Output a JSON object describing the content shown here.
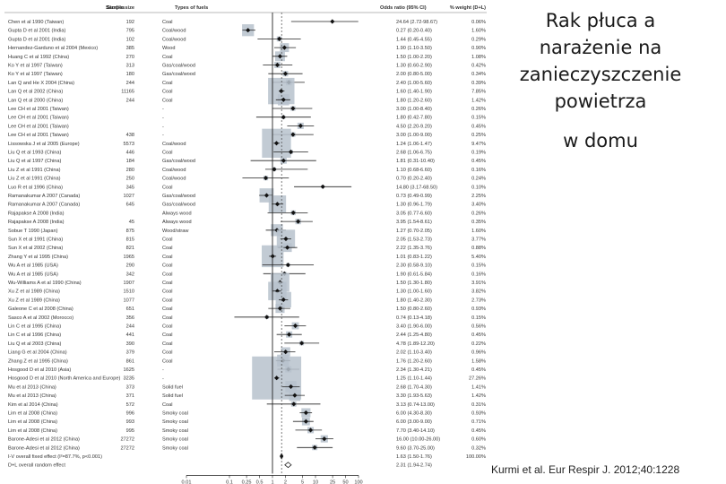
{
  "slide": {
    "title_lines": [
      "Rak płuca a",
      "narażenie na",
      "zanieczyszczenie",
      "powietrza"
    ],
    "subtitle": "w domu",
    "citation": "Kurmi et al. Eur Respir J. 2012;40:1228"
  },
  "chart_data": {
    "type": "forest",
    "title": "",
    "columns": [
      "Studies",
      "Sample size",
      "Types of fuels",
      "Odds ratio (95% CI)",
      "% weight (D+L)"
    ],
    "xscale": "log",
    "xlim": [
      0.01,
      100
    ],
    "xticks": [
      "0.01",
      "0.1",
      "0.25",
      "0.5",
      "1",
      "2",
      "5",
      "10",
      "25",
      "50",
      "100"
    ],
    "xtick_values": [
      0.01,
      0.1,
      0.25,
      0.5,
      1,
      2,
      5,
      10,
      25,
      50,
      100
    ],
    "reference_line": 1,
    "pooled_line": 1.63,
    "studies": [
      {
        "study": "Chen et al 1990 (Taiwan)",
        "n": "192",
        "fuel": "Coal",
        "or": 24.64,
        "lo": 2.72,
        "hi": 98.67,
        "ci_text": "24.64 (2.72-98.67)",
        "weight": "0.06%"
      },
      {
        "study": "Gupta D et al 2001 (India)",
        "n": "795",
        "fuel": "Coal/wood",
        "or": 0.27,
        "lo": 0.2,
        "hi": 0.4,
        "ci_text": "0.27 (0.20-0.40)",
        "weight": "1.60%"
      },
      {
        "study": "Gupta D et al 2001 (India)",
        "n": "102",
        "fuel": "Coal/wood",
        "or": 1.44,
        "lo": 0.45,
        "hi": 4.55,
        "ci_text": "1.44 (0.45-4.55)",
        "weight": "0.29%"
      },
      {
        "study": "Hernandez-Garduno et al 2004 (Mexico)",
        "n": "385",
        "fuel": "Wood",
        "or": 1.9,
        "lo": 1.1,
        "hi": 3.5,
        "ci_text": "1.90 (1.10-3.50)",
        "weight": "0.90%"
      },
      {
        "study": "Huang C et al 1992 (China)",
        "n": "270",
        "fuel": "Coal",
        "or": 1.5,
        "lo": 1.0,
        "hi": 2.2,
        "ci_text": "1.50 (1.00-2.20)",
        "weight": "1.08%"
      },
      {
        "study": "Ko Y et al 1997 (Taiwan)",
        "n": "313",
        "fuel": "Gas/coal/wood",
        "or": 1.3,
        "lo": 0.6,
        "hi": 2.9,
        "ci_text": "1.30 (0.60-2.90)",
        "weight": "0.42%"
      },
      {
        "study": "Ko Y et al 1997 (Taiwan)",
        "n": "180",
        "fuel": "Gas/coal/wood",
        "or": 2.0,
        "lo": 0.8,
        "hi": 5.0,
        "ci_text": "2.00 (0.80-5.00)",
        "weight": "0.34%"
      },
      {
        "study": "Lan Q and He X 2004 (China)",
        "n": "244",
        "fuel": "Coal",
        "or": 2.4,
        "lo": 1.0,
        "hi": 5.6,
        "ci_text": "2.40 (1.00-5.60)",
        "weight": "0.39%"
      },
      {
        "study": "Lan Q et al 2002 (China)",
        "n": "11165",
        "fuel": "Coal",
        "or": 1.6,
        "lo": 1.4,
        "hi": 1.9,
        "ci_text": "1.60 (1.40-1.90)",
        "weight": "7.85%"
      },
      {
        "study": "Lan Q et al 2000 (China)",
        "n": "244",
        "fuel": "Coal",
        "or": 1.8,
        "lo": 1.2,
        "hi": 2.6,
        "ci_text": "1.80 (1.20-2.60)",
        "weight": "1.42%"
      },
      {
        "study": "Lee CH et al 2001 (Taiwan)",
        "n": "",
        "fuel": "-",
        "or": 3.0,
        "lo": 1.0,
        "hi": 8.4,
        "ci_text": "3.00 (1.00-8.40)",
        "weight": "0.26%"
      },
      {
        "study": "Lee CH et al 2001 (Taiwan)",
        "n": "",
        "fuel": "-",
        "or": 1.8,
        "lo": 0.42,
        "hi": 7.8,
        "ci_text": "1.80 (0.42-7.80)",
        "weight": "0.15%"
      },
      {
        "study": "Lee CH et al 2001 (Taiwan)",
        "n": "",
        "fuel": "-",
        "or": 4.5,
        "lo": 2.2,
        "hi": 9.2,
        "ci_text": "4.50 (2.20-9.20)",
        "weight": "0.45%"
      },
      {
        "study": "Lee CH et al 2001 (Taiwan)",
        "n": "438",
        "fuel": "-",
        "or": 3.0,
        "lo": 1.0,
        "hi": 9.0,
        "ci_text": "3.00 (1.00-9.00)",
        "weight": "0.25%"
      },
      {
        "study": "Lissowska J et al 2005 (Europe)",
        "n": "5573",
        "fuel": "Coal/wood",
        "or": 1.24,
        "lo": 1.06,
        "hi": 1.47,
        "ci_text": "1.24 (1.06-1.47)",
        "weight": "9.47%"
      },
      {
        "study": "Liu Q et al 1993 (China)",
        "n": "446",
        "fuel": "Coal",
        "or": 2.68,
        "lo": 1.06,
        "hi": 6.75,
        "ci_text": "2.68 (1.06-6.75)",
        "weight": "0.19%"
      },
      {
        "study": "Liu Q et al 1997 (China)",
        "n": "184",
        "fuel": "Gas/coal/wood",
        "or": 1.81,
        "lo": 0.31,
        "hi": 10.4,
        "ci_text": "1.81 (0.31-10.40)",
        "weight": "0.45%"
      },
      {
        "study": "Liu Z et al 1991 (China)",
        "n": "280",
        "fuel": "Coal/wood",
        "or": 1.1,
        "lo": 0.68,
        "hi": 6.6,
        "ci_text": "1.10 (0.68-6.60)",
        "weight": "0.16%"
      },
      {
        "study": "Liu Z et al 1991 (China)",
        "n": "250",
        "fuel": "Coal/wood",
        "or": 0.7,
        "lo": 0.2,
        "hi": 2.4,
        "ci_text": "0.70 (0.20-2.40)",
        "weight": "0.24%"
      },
      {
        "study": "Luo R et al 1996 (China)",
        "n": "345",
        "fuel": "Coal",
        "or": 14.8,
        "lo": 3.17,
        "hi": 68.5,
        "ci_text": "14.80 (3.17-68.50)",
        "weight": "0.10%"
      },
      {
        "study": "Ramanakumar A 2007 (Canada)",
        "n": "1027",
        "fuel": "Gas/coal/wood",
        "or": 0.73,
        "lo": 0.49,
        "hi": 0.99,
        "ci_text": "0.73 (0.49-0.99)",
        "weight": "2.25%"
      },
      {
        "study": "Ramanakumar A 2007 (Canada)",
        "n": "645",
        "fuel": "Gas/coal/wood",
        "or": 1.3,
        "lo": 0.96,
        "hi": 1.79,
        "ci_text": "1.30 (0.96-1.79)",
        "weight": "3.40%"
      },
      {
        "study": "Rajapakse A 2008 (India)",
        "n": "",
        "fuel": "Always wood",
        "or": 3.05,
        "lo": 0.77,
        "hi": 6.6,
        "ci_text": "3.05 (0.77-6.60)",
        "weight": "0.26%"
      },
      {
        "study": "Rajapakse A 2008 (India)",
        "n": "45",
        "fuel": "Always wood",
        "or": 3.95,
        "lo": 1.54,
        "hi": 8.61,
        "ci_text": "3.95 (1.54-8.61)",
        "weight": "0.35%"
      },
      {
        "study": "Sobue T 1990 (Japan)",
        "n": "875",
        "fuel": "Wood/straw",
        "or": 1.27,
        "lo": 0.7,
        "hi": 2.05,
        "ci_text": "1.27 (0.70-2.05)",
        "weight": "1.60%"
      },
      {
        "study": "Sun X et al 1991 (China)",
        "n": "815",
        "fuel": "Coal",
        "or": 2.05,
        "lo": 1.53,
        "hi": 2.73,
        "ci_text": "2.05 (1.53-2.73)",
        "weight": "3.77%"
      },
      {
        "study": "Sun X et al 2002 (China)",
        "n": "821",
        "fuel": "Coal",
        "or": 2.22,
        "lo": 1.35,
        "hi": 3.76,
        "ci_text": "2.22 (1.35-3.76)",
        "weight": "0.88%"
      },
      {
        "study": "Zhang Y et al 1995 (China)",
        "n": "1965",
        "fuel": "Coal",
        "or": 1.01,
        "lo": 0.83,
        "hi": 1.22,
        "ci_text": "1.01 (0.83-1.22)",
        "weight": "5.40%"
      },
      {
        "study": "Wu A et al 1985 (USA)",
        "n": "290",
        "fuel": "Coal",
        "or": 2.3,
        "lo": 0.58,
        "hi": 9.1,
        "ci_text": "2.30 (0.58-9.10)",
        "weight": "0.15%"
      },
      {
        "study": "Wu A et al 1985 (USA)",
        "n": "342",
        "fuel": "Coal",
        "or": 1.9,
        "lo": 0.61,
        "hi": 5.84,
        "ci_text": "1.90 (0.61-5.84)",
        "weight": "0.16%"
      },
      {
        "study": "Wu-Williams A et al 1990 (China)",
        "n": "1907",
        "fuel": "Coal",
        "or": 1.5,
        "lo": 1.3,
        "hi": 1.8,
        "ci_text": "1.50 (1.30-1.80)",
        "weight": "3.91%"
      },
      {
        "study": "Xu Z et al 1989 (China)",
        "n": "1510",
        "fuel": "Coal",
        "or": 1.3,
        "lo": 1.0,
        "hi": 1.6,
        "ci_text": "1.30 (1.00-1.60)",
        "weight": "3.82%"
      },
      {
        "study": "Xu Z et al 1989 (China)",
        "n": "1077",
        "fuel": "Coal",
        "or": 1.8,
        "lo": 1.4,
        "hi": 2.3,
        "ci_text": "1.80 (1.40-2.30)",
        "weight": "2.73%"
      },
      {
        "study": "Galeone C et al 2008 (China)",
        "n": "651",
        "fuel": "Coal",
        "or": 1.5,
        "lo": 0.8,
        "hi": 2.6,
        "ci_text": "1.50 (0.80-2.60)",
        "weight": "0.93%"
      },
      {
        "study": "Sasco A et al 2002 (Morocco)",
        "n": "356",
        "fuel": "Coal",
        "or": 0.74,
        "lo": 0.13,
        "hi": 4.18,
        "ci_text": "0.74 (0.13-4.18)",
        "weight": "0.15%"
      },
      {
        "study": "Lin C et al 1995 (China)",
        "n": "244",
        "fuel": "Coal",
        "or": 3.4,
        "lo": 1.9,
        "hi": 6.0,
        "ci_text": "3.40 (1.90-6.00)",
        "weight": "0.56%"
      },
      {
        "study": "Lin C et al 1996 (China)",
        "n": "441",
        "fuel": "Coal",
        "or": 2.44,
        "lo": 1.25,
        "hi": 4.8,
        "ci_text": "2.44 (1.25-4.80)",
        "weight": "0.45%"
      },
      {
        "study": "Liu Q et al 2003 (China)",
        "n": "390",
        "fuel": "Coal",
        "or": 4.78,
        "lo": 1.89,
        "hi": 12.2,
        "ci_text": "4.78 (1.89-12.20)",
        "weight": "0.22%"
      },
      {
        "study": "Liang G et al 2004 (China)",
        "n": "379",
        "fuel": "Coal",
        "or": 2.02,
        "lo": 1.1,
        "hi": 3.4,
        "ci_text": "2.02 (1.10-3.40)",
        "weight": "0.96%"
      },
      {
        "study": "Zhang Z et al 1995 (China)",
        "n": "861",
        "fuel": "Coal",
        "or": 1.76,
        "lo": 1.2,
        "hi": 2.6,
        "ci_text": "1.76 (1.20-2.60)",
        "weight": "1.58%"
      },
      {
        "study": "Hosgood D et al 2010 (Asia)",
        "n": "1625",
        "fuel": "-",
        "or": 2.34,
        "lo": 1.3,
        "hi": 4.21,
        "ci_text": "2.34 (1.30-4.21)",
        "weight": "0.45%"
      },
      {
        "study": "Hosgood D et al 2010 (North America and Europe)",
        "n": "3235",
        "fuel": "-",
        "or": 1.25,
        "lo": 1.1,
        "hi": 1.44,
        "ci_text": "1.25 (1.10-1.44)",
        "weight": "27.26%"
      },
      {
        "study": "Mu et al 2013 (China)",
        "n": "373",
        "fuel": "Solid fuel",
        "or": 2.68,
        "lo": 1.7,
        "hi": 4.3,
        "ci_text": "2.68 (1.70-4.30)",
        "weight": "1.41%"
      },
      {
        "study": "Mu et al 2013 (China)",
        "n": "371",
        "fuel": "Solid fuel",
        "or": 3.3,
        "lo": 1.93,
        "hi": 5.63,
        "ci_text": "3.30 (1.93-5.63)",
        "weight": "1.42%"
      },
      {
        "study": "Kim et al 2014 (China)",
        "n": "572",
        "fuel": "Coal",
        "or": 3.13,
        "lo": 0.74,
        "hi": 13.0,
        "ci_text": "3.13 (0.74-13.00)",
        "weight": "0.31%"
      },
      {
        "study": "Lim et al 2008 (China)",
        "n": "996",
        "fuel": "Smoky coal",
        "or": 6.0,
        "lo": 4.3,
        "hi": 8.3,
        "ci_text": "6.00 (4.30-8.30)",
        "weight": "0.93%"
      },
      {
        "study": "Lim et al 2008 (China)",
        "n": "993",
        "fuel": "Smoky coal",
        "or": 6.0,
        "lo": 3.0,
        "hi": 9.0,
        "ci_text": "6.00 (3.00-9.00)",
        "weight": "0.71%"
      },
      {
        "study": "Lim et al 2008 (China)",
        "n": "995",
        "fuel": "Smoky coal",
        "or": 7.7,
        "lo": 3.4,
        "hi": 14.1,
        "ci_text": "7.70 (3.40-14.10)",
        "weight": "0.45%"
      },
      {
        "study": "Barone-Adesi et al 2012 (China)",
        "n": "27272",
        "fuel": "Smoky coal",
        "or": 16.0,
        "lo": 10.0,
        "hi": 26.0,
        "ci_text": "16.00 (10.00-26.00)",
        "weight": "0.60%"
      },
      {
        "study": "Barone-Adesi et al 2012 (China)",
        "n": "27272",
        "fuel": "Smoky coal",
        "or": 9.6,
        "lo": 3.7,
        "hi": 25.0,
        "ci_text": "9.60 (3.70-25.00)",
        "weight": "0.32%"
      }
    ],
    "pooled": [
      {
        "label": "I-V overall fixed effect (I²=87.7%, p<0.001)",
        "or": 1.63,
        "lo": 1.5,
        "hi": 1.76,
        "ci_text": "1.63 (1.50-1.76)",
        "weight": "100.00%",
        "style": "solid"
      },
      {
        "label": "D+L overall random effect",
        "or": 2.31,
        "lo": 1.94,
        "hi": 2.74,
        "ci_text": "2.31 (1.94-2.74)",
        "weight": "",
        "style": "open"
      }
    ]
  }
}
